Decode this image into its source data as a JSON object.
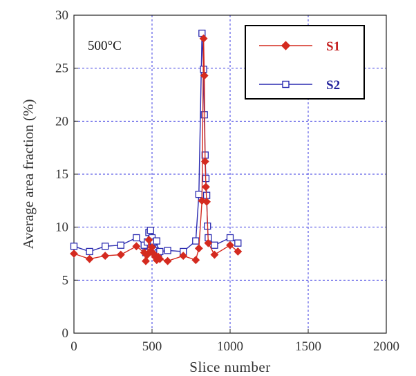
{
  "chart_data": {
    "type": "line",
    "title": "",
    "xlabel": "Slice number",
    "ylabel": "Average area fraction (%)",
    "xlim": [
      0,
      2000
    ],
    "ylim": [
      0,
      30
    ],
    "x_ticks": [
      "0",
      "500",
      "1000",
      "1500",
      "2000"
    ],
    "y_ticks": [
      "0",
      "5",
      "10",
      "15",
      "20",
      "25",
      "30"
    ],
    "grid": true,
    "legend_position": "top-right",
    "annotations": [
      {
        "text": "500°C"
      }
    ],
    "series": [
      {
        "name": "S1",
        "color": "#d42a1f",
        "marker": "filled-diamond",
        "points": [
          [
            0,
            7.5
          ],
          [
            100,
            7.0
          ],
          [
            200,
            7.3
          ],
          [
            300,
            7.4
          ],
          [
            400,
            8.2
          ],
          [
            450,
            7.6
          ],
          [
            460,
            6.8
          ],
          [
            470,
            7.4
          ],
          [
            480,
            8.8
          ],
          [
            490,
            7.7
          ],
          [
            500,
            8.1
          ],
          [
            510,
            7.5
          ],
          [
            520,
            7.2
          ],
          [
            530,
            6.9
          ],
          [
            540,
            7.2
          ],
          [
            550,
            7.0
          ],
          [
            600,
            6.8
          ],
          [
            700,
            7.3
          ],
          [
            780,
            6.9
          ],
          [
            800,
            8.0
          ],
          [
            820,
            12.5
          ],
          [
            830,
            27.8
          ],
          [
            835,
            24.3
          ],
          [
            840,
            16.2
          ],
          [
            845,
            13.8
          ],
          [
            850,
            12.4
          ],
          [
            860,
            8.5
          ],
          [
            900,
            7.4
          ],
          [
            1000,
            8.3
          ],
          [
            1050,
            7.7
          ]
        ]
      },
      {
        "name": "S2",
        "color": "#2a2ab0",
        "marker": "open-square",
        "points": [
          [
            0,
            8.2
          ],
          [
            100,
            7.7
          ],
          [
            200,
            8.2
          ],
          [
            300,
            8.3
          ],
          [
            400,
            9.0
          ],
          [
            450,
            8.3
          ],
          [
            460,
            7.6
          ],
          [
            470,
            8.6
          ],
          [
            480,
            9.5
          ],
          [
            490,
            9.7
          ],
          [
            500,
            9.0
          ],
          [
            510,
            8.6
          ],
          [
            520,
            7.8
          ],
          [
            530,
            8.7
          ],
          [
            540,
            7.6
          ],
          [
            550,
            7.7
          ],
          [
            600,
            7.8
          ],
          [
            700,
            7.7
          ],
          [
            780,
            8.7
          ],
          [
            800,
            13.1
          ],
          [
            820,
            28.3
          ],
          [
            830,
            24.9
          ],
          [
            835,
            20.6
          ],
          [
            840,
            16.8
          ],
          [
            845,
            14.6
          ],
          [
            850,
            13.0
          ],
          [
            855,
            10.1
          ],
          [
            860,
            9.0
          ],
          [
            900,
            8.3
          ],
          [
            1000,
            9.0
          ],
          [
            1050,
            8.5
          ]
        ]
      }
    ]
  }
}
